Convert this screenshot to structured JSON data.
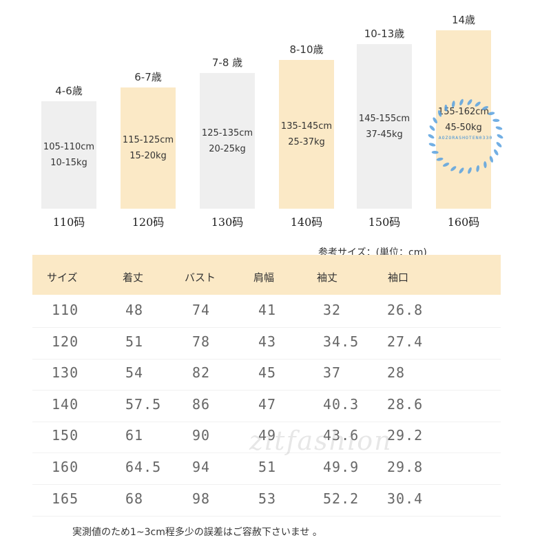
{
  "columns": [
    {
      "age": "4-6歳",
      "height": "105-110cm",
      "weight": "10-15kg",
      "size": "110码",
      "style": "gray"
    },
    {
      "age": "6-7歳",
      "height": "115-125cm",
      "weight": "15-20kg",
      "size": "120码",
      "style": "beige"
    },
    {
      "age": "7-8 歳",
      "height": "125-135cm",
      "weight": "20-25kg",
      "size": "130码",
      "style": "gray"
    },
    {
      "age": "8-10歳",
      "height": "135-145cm",
      "weight": "25-37kg",
      "size": "140码",
      "style": "beige"
    },
    {
      "age": "10-13歳",
      "height": "145-155cm",
      "weight": "37-45kg",
      "size": "150码",
      "style": "gray"
    },
    {
      "age": "14歳",
      "height": "155-162cm",
      "weight": "45-50kg",
      "size": "160码",
      "style": "beige"
    }
  ],
  "stamp_text": "AOZORASHOTEN0330",
  "table": {
    "unit_label": "参考サイズ：(単位：cm)",
    "headers": [
      "サイズ",
      "着丈",
      "バスト",
      "肩幅",
      "袖丈",
      "袖口"
    ],
    "rows": [
      [
        "110",
        "48",
        "74",
        "41",
        "32",
        "26.8"
      ],
      [
        "120",
        "51",
        "78",
        "43",
        "34.5",
        "27.4"
      ],
      [
        "130",
        "54",
        "82",
        "45",
        "37",
        "28"
      ],
      [
        "140",
        "57.5",
        "86",
        "47",
        "40.3",
        "28.6"
      ],
      [
        "150",
        "61",
        "90",
        "49",
        "43.6",
        "29.2"
      ],
      [
        "160",
        "64.5",
        "94",
        "51",
        "49.9",
        "29.8"
      ],
      [
        "165",
        "68",
        "98",
        "53",
        "52.2",
        "30.4"
      ]
    ]
  },
  "watermark": "zitfashion",
  "note": "実測値のため1~3cm程多少の誤差はご容赦下さいませ 。",
  "colors": {
    "beige": "#fbe9c6",
    "gray": "#efefef",
    "stamp": "#3b8fd9"
  }
}
